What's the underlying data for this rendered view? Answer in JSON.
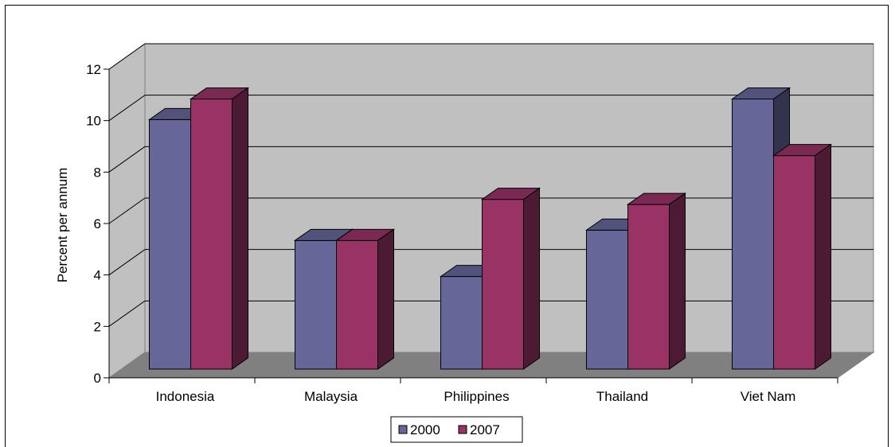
{
  "chart_data": {
    "type": "bar",
    "title": "",
    "xlabel": "",
    "ylabel": "Percent per annum",
    "ylim": [
      0,
      12
    ],
    "yticks": [
      "0",
      "2",
      "4",
      "6",
      "8",
      "10",
      "12"
    ],
    "grid": true,
    "three_d": true,
    "legend_position": "bottom",
    "categories": [
      "Indonesia",
      "Malaysia",
      "Philippines",
      "Thailand",
      "Viet Nam"
    ],
    "series": [
      {
        "name": "2000",
        "values": [
          9.7,
          5.0,
          3.6,
          5.4,
          10.5
        ],
        "color": "#666699"
      },
      {
        "name": "2007",
        "values": [
          10.5,
          5.0,
          6.6,
          6.4,
          8.3
        ],
        "color": "#993366"
      }
    ]
  }
}
